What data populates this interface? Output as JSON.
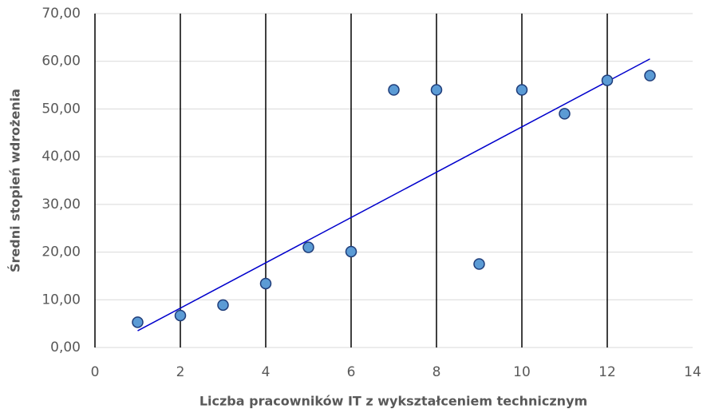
{
  "chart_data": {
    "type": "scatter",
    "xlabel": "Liczba pracowników IT z wykształceniem technicznym",
    "ylabel": "Średni stopień wdrożenia",
    "series": [
      {
        "color": "#5b9bd5",
        "x": [
          1,
          2,
          3,
          4,
          5,
          6,
          7,
          8,
          9,
          10,
          11,
          12,
          13
        ],
        "values": [
          5.3,
          6.7,
          8.9,
          13.4,
          21.0,
          20.1,
          54.0,
          54.0,
          17.5,
          54.0,
          49.0,
          56.0,
          57.0
        ]
      }
    ],
    "trendline": {
      "color": "#0000cc",
      "x": [
        1,
        13
      ],
      "values": [
        3.5,
        60.5
      ]
    },
    "xlim": [
      0,
      14
    ],
    "xticks": [
      0,
      2,
      4,
      6,
      8,
      10,
      12,
      14
    ],
    "ylim": [
      0,
      70
    ],
    "yticks": [
      {
        "value": 0,
        "label": "0,00"
      },
      {
        "value": 10,
        "label": "10,00"
      },
      {
        "value": 20,
        "label": "20,00"
      },
      {
        "value": 30,
        "label": "30,00"
      },
      {
        "value": 40,
        "label": "40,00"
      },
      {
        "value": 50,
        "label": "50,00"
      },
      {
        "value": 60,
        "label": "60,00"
      },
      {
        "value": 70,
        "label": "70,00"
      }
    ],
    "grid": true
  }
}
